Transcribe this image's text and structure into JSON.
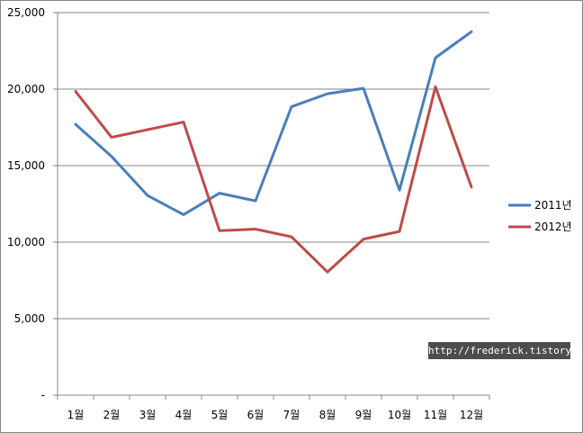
{
  "colors": {
    "series_2011": "#4a7ebb",
    "series_2012": "#be4b48",
    "grid": "#868686",
    "axis": "#868686"
  },
  "chart_data": {
    "type": "line",
    "categories": [
      "1월",
      "2월",
      "3월",
      "4월",
      "5월",
      "6월",
      "7월",
      "8월",
      "9월",
      "10월",
      "11월",
      "12월"
    ],
    "series": [
      {
        "name": "2011년",
        "values": [
          17700,
          15600,
          13050,
          11800,
          13200,
          12700,
          18850,
          19700,
          20050,
          13400,
          22050,
          23750
        ]
      },
      {
        "name": "2012년",
        "values": [
          19850,
          16850,
          17350,
          17850,
          10750,
          10850,
          10350,
          8050,
          10200,
          10700,
          20150,
          13600
        ]
      }
    ],
    "y_ticks": [
      "-",
      "5,000",
      "10,000",
      "15,000",
      "20,000",
      "25,000"
    ],
    "ylim": [
      0,
      25000
    ],
    "grid": true,
    "legend_position": "right"
  },
  "watermark": "http://frederick.tistory.com"
}
